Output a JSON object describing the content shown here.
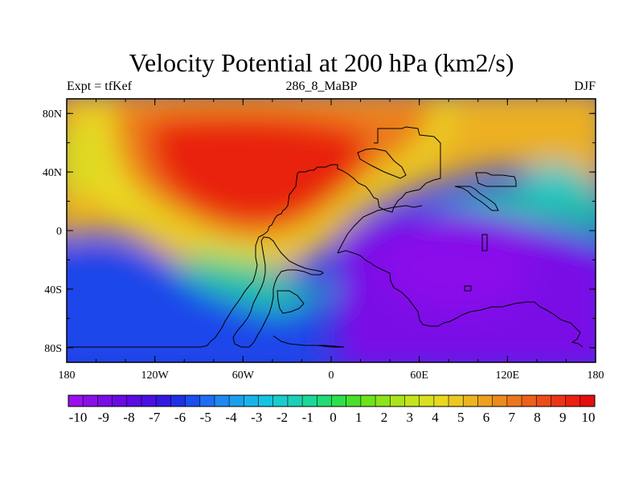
{
  "title": "Velocity Potential at 200 hPa (km2/s)",
  "subtitle_left": "Expt = tfKef",
  "subtitle_center": "286_8_MaBP",
  "subtitle_right": "DJF",
  "map": {
    "x_ticks": [
      "180",
      "120W",
      "60W",
      "0",
      "60E",
      "120E",
      "180"
    ],
    "y_ticks": [
      "80N",
      "40N",
      "0",
      "40S",
      "80S"
    ]
  },
  "colorbar": {
    "labels": [
      "-10",
      "-9",
      "-8",
      "-7",
      "-6",
      "-5",
      "-4",
      "-3",
      "-2",
      "-1",
      "0",
      "1",
      "2",
      "3",
      "4",
      "5",
      "6",
      "7",
      "8",
      "9",
      "10"
    ],
    "colors": [
      "#9a10ec",
      "#8a10e8",
      "#7a0ce6",
      "#6a0ae4",
      "#5a0ce2",
      "#4a10e0",
      "#3418e0",
      "#1e2fe6",
      "#1c4fee",
      "#1e6ef2",
      "#1e88f2",
      "#1aa0ee",
      "#18b4e8",
      "#14c4e0",
      "#18ccd0",
      "#1cd0b8",
      "#1cd898",
      "#20dc74",
      "#2ce04c",
      "#48e02a",
      "#6ce41c",
      "#8ce41c",
      "#aae41c",
      "#c4e41c",
      "#d8e020",
      "#e8d820",
      "#ecc820",
      "#ecb420",
      "#eca01c",
      "#ec8a1c",
      "#ec761c",
      "#ec601c",
      "#ec4c18",
      "#ec3414",
      "#ec2010",
      "#e40e0e"
    ]
  }
}
